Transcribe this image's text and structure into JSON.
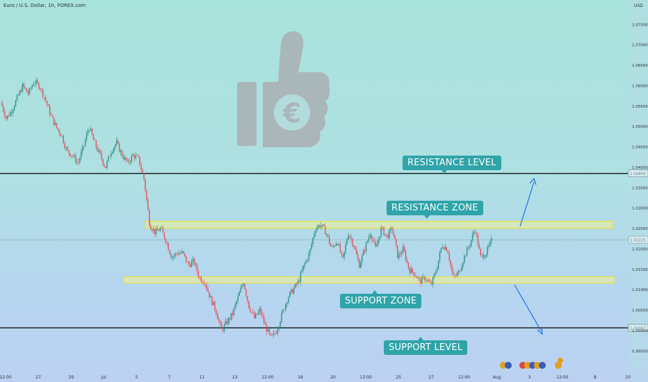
{
  "header": {
    "symbol": "Euro / U.S. Dollar, 1h, FOREX.com",
    "currency": "USD"
  },
  "chart_data": {
    "type": "candlestick",
    "ylim": [
      0.9925,
      1.081
    ],
    "y_ticks": [
      "1.07500",
      "1.07000",
      "1.06500",
      "1.06000",
      "1.05500",
      "1.05000",
      "1.04500",
      "1.04000",
      "1.03500",
      "1.03000",
      "1.02500",
      "1.02000",
      "1.01500",
      "1.01000",
      "1.00500",
      "1.00000",
      "0.99500"
    ],
    "x_ticks": [
      "12:00",
      "27",
      "29",
      "Jul",
      "5",
      "7",
      "11",
      "13",
      "12:00",
      "18",
      "20",
      "12:00",
      "25",
      "27",
      "12:00",
      "Aug",
      "3",
      "12:00",
      "8",
      "10"
    ],
    "horizontal_levels": [
      {
        "name": "resistance-level",
        "value": 1.0385,
        "label": "1.03850",
        "color": "#000000"
      },
      {
        "name": "support-level",
        "value": 1.00067,
        "label": "1.00067",
        "color": "#000000"
      }
    ],
    "current_price": {
      "value": 1.02225,
      "label": "1.02225"
    },
    "zones": [
      {
        "name": "resistance-zone",
        "low": 1.025,
        "high": 1.0268
      },
      {
        "name": "support-zone",
        "low": 1.0116,
        "high": 1.0132
      }
    ],
    "price_path": [
      1.056,
      1.052,
      1.054,
      1.057,
      1.06,
      1.058,
      1.061,
      1.06,
      1.057,
      1.053,
      1.05,
      1.048,
      1.044,
      1.043,
      1.041,
      1.045,
      1.05,
      1.046,
      1.043,
      1.04,
      1.044,
      1.046,
      1.043,
      1.041,
      1.043,
      1.042,
      1.037,
      1.026,
      1.024,
      1.025,
      1.022,
      1.018,
      1.019,
      1.019,
      1.016,
      1.017,
      1.013,
      1.012,
      1.008,
      1.005,
      1.0,
      1.002,
      1.004,
      1.008,
      1.012,
      1.006,
      1.003,
      1.005,
      1.001,
      0.998,
      1.0,
      1.004,
      1.008,
      1.01,
      1.012,
      1.016,
      1.019,
      1.025,
      1.026,
      1.024,
      1.02,
      1.022,
      1.017,
      1.024,
      1.021,
      1.016,
      1.02,
      1.024,
      1.02,
      1.025,
      1.023,
      1.025,
      1.018,
      1.02,
      1.015,
      1.014,
      1.012,
      1.013,
      1.011,
      1.015,
      1.021,
      1.02,
      1.013,
      1.014,
      1.018,
      1.021,
      1.025,
      1.018,
      1.019,
      1.022
    ],
    "annotations": [
      {
        "name": "resistance-level-label",
        "text": "RESISTANCE LEVEL"
      },
      {
        "name": "resistance-zone-label",
        "text": "RESISTANCE ZONE"
      },
      {
        "name": "support-zone-label",
        "text": "SUPPORT ZONE"
      },
      {
        "name": "support-level-label",
        "text": "SUPPORT LEVEL"
      }
    ],
    "colors": {
      "up": "#2a8f7f",
      "down": "#e0515a",
      "zone_fill": "#f4f08e",
      "zone_border": "#e9df38",
      "callout": "#2fa4a9",
      "arrow": "#1e6fe0"
    }
  }
}
